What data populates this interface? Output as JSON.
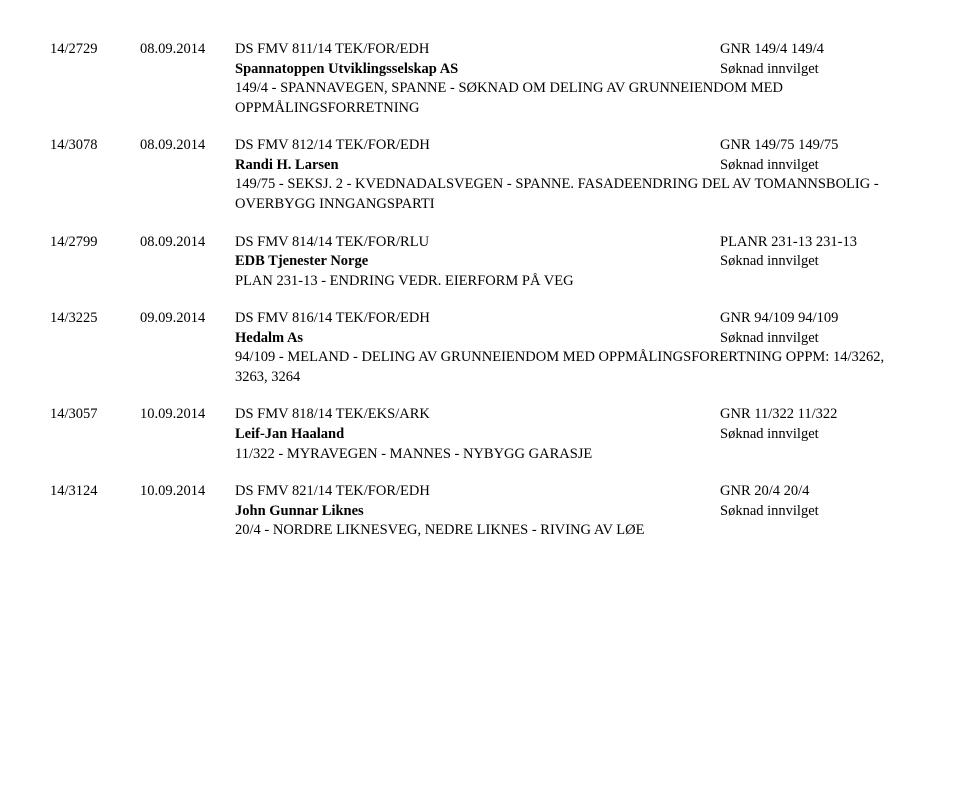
{
  "entries": [
    {
      "case_no": "14/2729",
      "date": "08.09.2014",
      "doc_id": "DS FMV 811/14 TEK/FOR/EDH",
      "ref": "GNR 149/4 149/4",
      "party": "Spannatoppen Utviklingsselskap AS",
      "status": "Søknad innvilget",
      "desc": "149/4 - SPANNAVEGEN, SPANNE - SØKNAD OM DELING AV GRUNNEIENDOM MED OPPMÅLINGSFORRETNING"
    },
    {
      "case_no": "14/3078",
      "date": "08.09.2014",
      "doc_id": "DS FMV 812/14 TEK/FOR/EDH",
      "ref": "GNR 149/75 149/75",
      "party": "Randi H. Larsen",
      "status": "Søknad innvilget",
      "desc": "149/75 - SEKSJ. 2 - KVEDNADALSVEGEN - SPANNE. FASADEENDRING DEL AV TOMANNSBOLIG - OVERBYGG INNGANGSPARTI"
    },
    {
      "case_no": "14/2799",
      "date": "08.09.2014",
      "doc_id": "DS FMV 814/14 TEK/FOR/RLU",
      "ref": "PLANR 231-13 231-13",
      "party": "EDB Tjenester Norge",
      "status": "Søknad innvilget",
      "desc": "PLAN 231-13 - ENDRING VEDR. EIERFORM PÅ VEG"
    },
    {
      "case_no": "14/3225",
      "date": "09.09.2014",
      "doc_id": "DS FMV 816/14 TEK/FOR/EDH",
      "ref": "GNR 94/109 94/109",
      "party": "Hedalm As",
      "status": "Søknad innvilget",
      "desc": "94/109 - MELAND - DELING AV GRUNNEIENDOM MED OPPMÅLINGSFORERTNING OPPM: 14/3262, 3263, 3264"
    },
    {
      "case_no": "14/3057",
      "date": "10.09.2014",
      "doc_id": "DS FMV 818/14 TEK/EKS/ARK",
      "ref": "GNR 11/322 11/322",
      "party": "Leif-Jan Haaland",
      "status": "Søknad innvilget",
      "desc": "11/322 - MYRAVEGEN - MANNES - NYBYGG GARASJE"
    },
    {
      "case_no": "14/3124",
      "date": "10.09.2014",
      "doc_id": "DS FMV 821/14 TEK/FOR/EDH",
      "ref": "GNR 20/4 20/4",
      "party": "John Gunnar Liknes",
      "status": "Søknad innvilget",
      "desc": "20/4 - NORDRE LIKNESVEG, NEDRE LIKNES - RIVING AV LØE"
    }
  ]
}
